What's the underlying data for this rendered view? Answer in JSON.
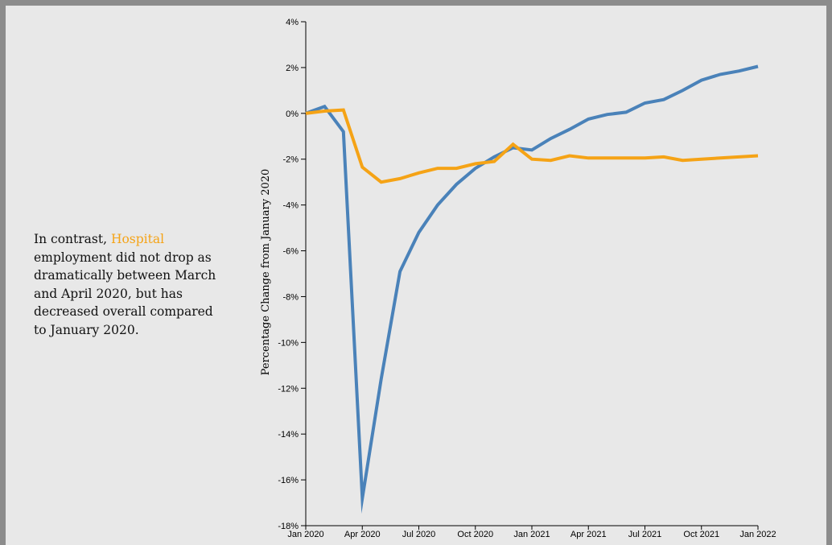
{
  "narrative": {
    "prefix": "In contrast, ",
    "highlight": "Hospital",
    "suffix": " employment did not drop as dramatically between March and April 2020, but has decreased overall compared to January 2020."
  },
  "chart_data": {
    "type": "line",
    "ylabel": "Percentage Change from January 2020",
    "xlabel": "",
    "ylim": [
      -18,
      4
    ],
    "y_ticks": [
      4,
      2,
      0,
      -2,
      -4,
      -6,
      -8,
      -10,
      -12,
      -14,
      -16,
      -18
    ],
    "y_tick_suffix": "%",
    "x_range": [
      "2020-01",
      "2022-01"
    ],
    "x_ticks": [
      {
        "date": "2020-01",
        "label": "Jan 2020"
      },
      {
        "date": "2020-04",
        "label": "Apr 2020"
      },
      {
        "date": "2020-07",
        "label": "Jul 2020"
      },
      {
        "date": "2020-10",
        "label": "Oct 2020"
      },
      {
        "date": "2021-01",
        "label": "Jan 2021"
      },
      {
        "date": "2021-04",
        "label": "Apr 2021"
      },
      {
        "date": "2021-07",
        "label": "Jul 2021"
      },
      {
        "date": "2021-10",
        "label": "Oct 2021"
      },
      {
        "date": "2022-01",
        "label": "Jan 2022"
      }
    ],
    "x": [
      "2020-01",
      "2020-02",
      "2020-03",
      "2020-04",
      "2020-05",
      "2020-06",
      "2020-07",
      "2020-08",
      "2020-09",
      "2020-10",
      "2020-11",
      "2020-12",
      "2021-01",
      "2021-02",
      "2021-03",
      "2021-04",
      "2021-05",
      "2021-06",
      "2021-07",
      "2021-08",
      "2021-09",
      "2021-10",
      "2021-11",
      "2021-12",
      "2022-01"
    ],
    "series": [
      {
        "color": "#4a82b9",
        "values": [
          0,
          0.3,
          -0.8,
          -16.8,
          -11.6,
          -6.9,
          -5.2,
          -4.0,
          -3.1,
          -2.4,
          -1.9,
          -1.5,
          -1.6,
          -1.1,
          -0.7,
          -0.25,
          -0.05,
          0.05,
          0.45,
          0.6,
          1.0,
          1.45,
          1.7,
          1.85,
          2.05
        ]
      },
      {
        "color": "#f5a316",
        "values": [
          0,
          0.1,
          0.15,
          -2.35,
          -3.0,
          -2.85,
          -2.6,
          -2.4,
          -2.4,
          -2.2,
          -2.1,
          -1.35,
          -2.0,
          -2.05,
          -1.85,
          -1.95,
          -1.95,
          -1.95,
          -1.95,
          -1.9,
          -2.05,
          -2.0,
          -1.95,
          -1.9,
          -1.85
        ]
      }
    ],
    "grid": false
  }
}
